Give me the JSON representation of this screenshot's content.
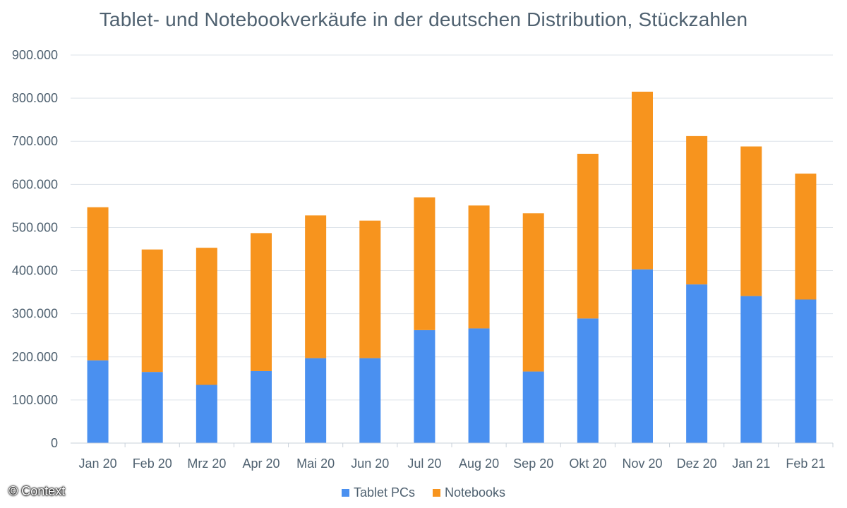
{
  "chart_data": {
    "type": "bar",
    "stacked": true,
    "title": "Tablet- und Notebookverkäufe in der deutschen Distribution, Stückzahlen",
    "categories": [
      "Jan 20",
      "Feb 20",
      "Mrz 20",
      "Apr 20",
      "Mai 20",
      "Jun 20",
      "Jul 20",
      "Aug 20",
      "Sep 20",
      "Okt 20",
      "Nov 20",
      "Dez 20",
      "Jan 21",
      "Feb 21"
    ],
    "series": [
      {
        "name": "Tablet PCs",
        "color": "#4a90f0",
        "values": [
          192000,
          165000,
          135000,
          167000,
          197000,
          197000,
          262000,
          266000,
          166000,
          289000,
          403000,
          368000,
          341000,
          333000
        ]
      },
      {
        "name": "Notebooks",
        "color": "#f7941e",
        "values": [
          355000,
          284000,
          318000,
          320000,
          331000,
          319000,
          308000,
          285000,
          367000,
          382000,
          412000,
          344000,
          347000,
          292000
        ]
      }
    ],
    "ylim": [
      0,
      900000
    ],
    "yticks": [
      0,
      100000,
      200000,
      300000,
      400000,
      500000,
      600000,
      700000,
      800000,
      900000
    ],
    "ytick_labels": [
      "0",
      "100.000",
      "200.000",
      "300.000",
      "400.000",
      "500.000",
      "600.000",
      "700.000",
      "800.000",
      "900.000"
    ],
    "grid": true,
    "legend_position": "bottom",
    "xlabel": "",
    "ylabel": ""
  },
  "copyright": "© Context"
}
